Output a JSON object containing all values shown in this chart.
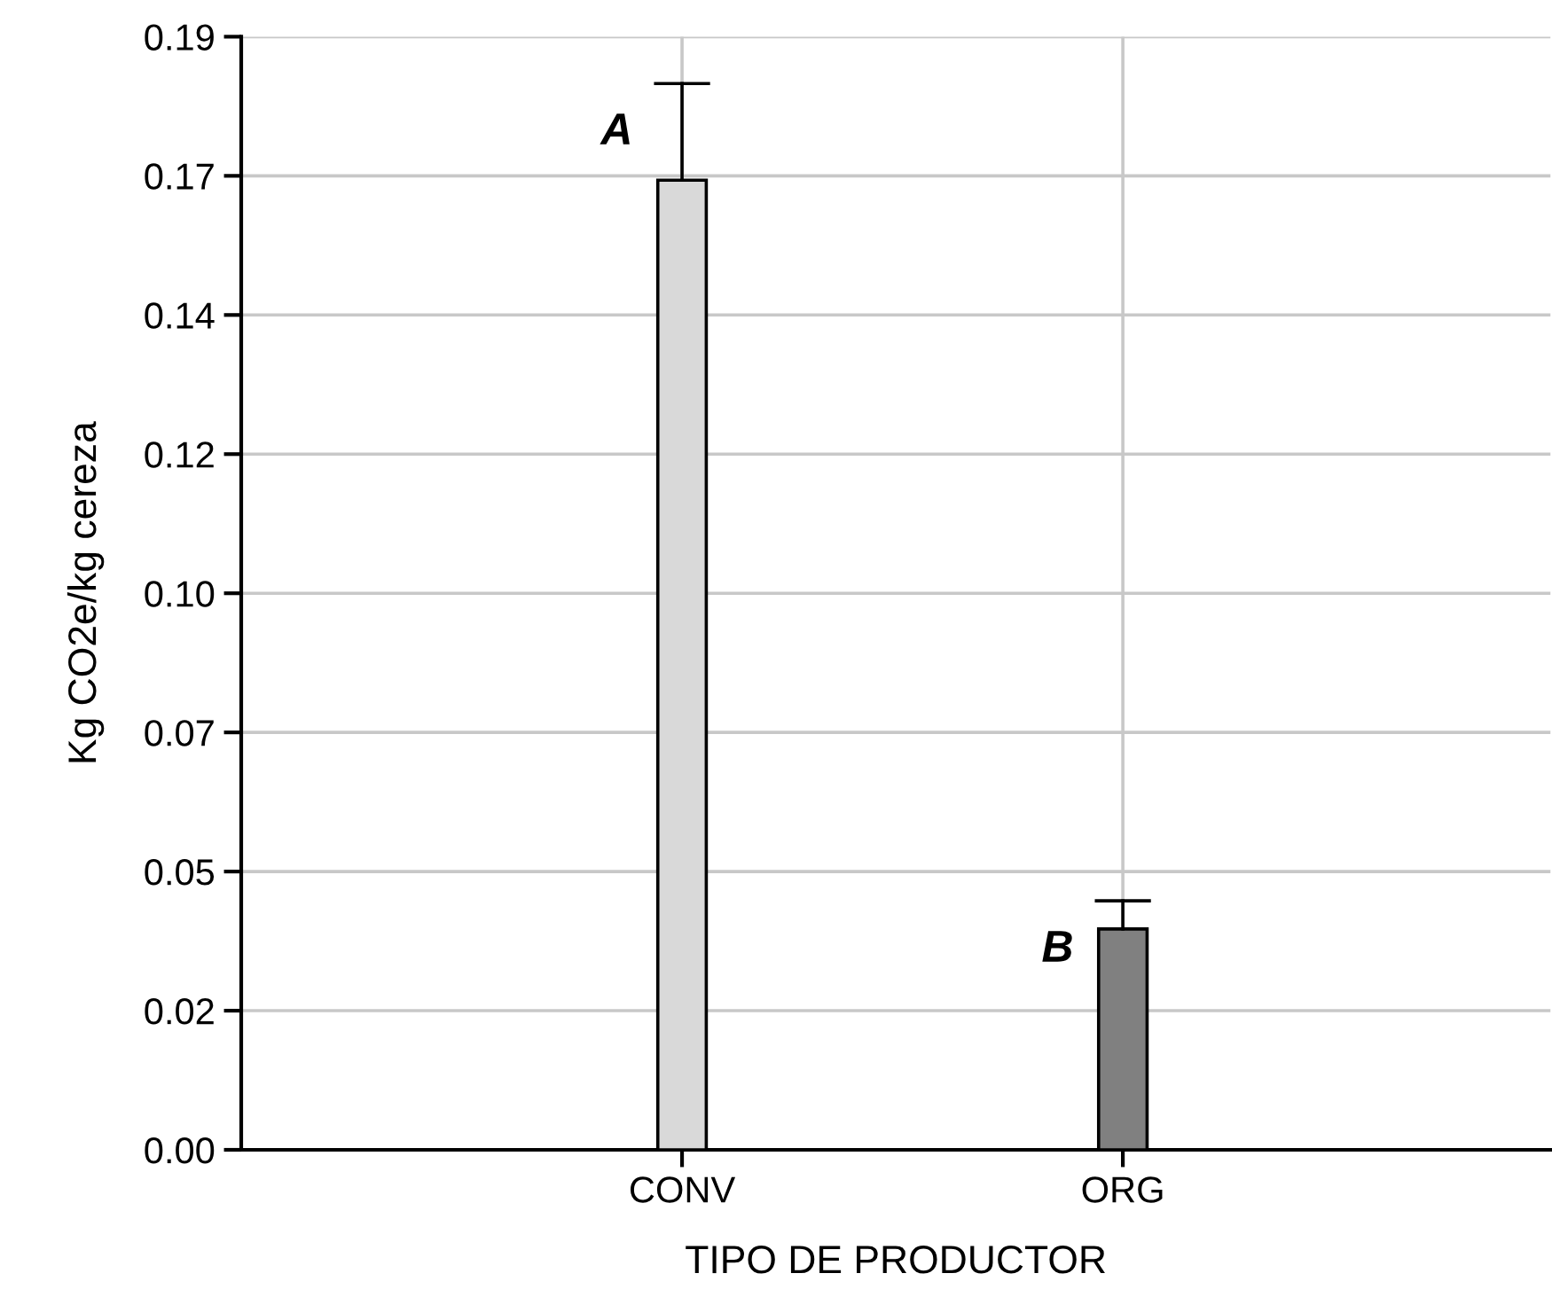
{
  "chart_data": {
    "type": "bar",
    "xlabel": "TIPO DE PRODUCTOR",
    "ylabel": "Kg CO2e/kg cereza",
    "categories": [
      "CONV",
      "ORG"
    ],
    "values": [
      0.1655,
      0.0377
    ],
    "colors": [
      "#d9d9d9",
      "#808080"
    ],
    "errors": [
      [
        0.1655,
        0.182
      ],
      [
        0.0377,
        0.0425
      ]
    ],
    "ylim": [
      0,
      0.19
    ],
    "yticks": [
      {
        "value": 0,
        "label": "0.00"
      },
      {
        "value": 0.02375,
        "label": "0.02"
      },
      {
        "value": 0.0475,
        "label": "0.05"
      },
      {
        "value": 0.07125,
        "label": "0.07"
      },
      {
        "value": 0.095,
        "label": "0.10"
      },
      {
        "value": 0.11875,
        "label": "0.12"
      },
      {
        "value": 0.1425,
        "label": "0.14"
      },
      {
        "value": 0.16625,
        "label": "0.17"
      },
      {
        "value": 0.19,
        "label": "0.19"
      }
    ],
    "grid": true,
    "annotations": [
      "A",
      "B"
    ]
  }
}
